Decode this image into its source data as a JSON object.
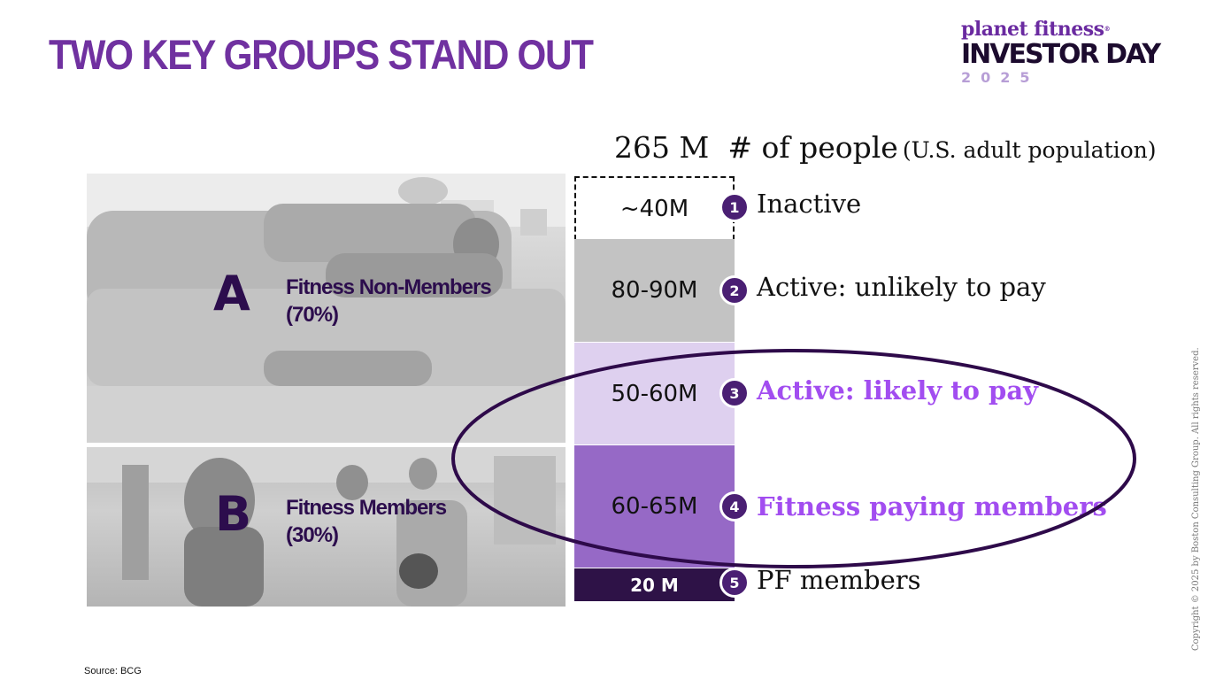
{
  "slide": {
    "title": "TWO KEY GROUPS STAND OUT",
    "source": "Source: BCG",
    "copyright": "Copyright © 2025 by Boston Consulting Group. All rights reserved."
  },
  "logo": {
    "brand": "planet fitness",
    "brand_mark": "®",
    "event": "INVESTOR DAY",
    "year": "2025"
  },
  "population": {
    "total": "265 M",
    "label": "# of people",
    "sublabel": "(U.S. adult population)"
  },
  "groups": [
    {
      "letter": "A",
      "label": "Fitness Non-Members",
      "share": "(70%)"
    },
    {
      "letter": "B",
      "label": "Fitness Members",
      "share": "(30%)"
    }
  ],
  "segments": [
    {
      "number": "1",
      "value": "~40M",
      "label": "Inactive",
      "highlight": false
    },
    {
      "number": "2",
      "value": "80-90M",
      "label": "Active: unlikely to pay",
      "highlight": false
    },
    {
      "number": "3",
      "value": "50-60M",
      "label": "Active: likely to pay",
      "highlight": true
    },
    {
      "number": "4",
      "value": "60-65M",
      "label": "Fitness paying members",
      "highlight": true
    },
    {
      "number": "5",
      "value": "20 M",
      "label": "PF members",
      "highlight": false
    }
  ],
  "colors": {
    "title": "#7031a0",
    "highlight_text": "#a24df0",
    "marker": "#4a1f73",
    "ellipse": "#2e0a4a",
    "segment_inactive": "#ffffff",
    "segment_unlikely": "#c3c3c3",
    "segment_likely": "#ded0ef",
    "segment_paying": "#9669c6",
    "segment_pf": "#2e1247"
  }
}
